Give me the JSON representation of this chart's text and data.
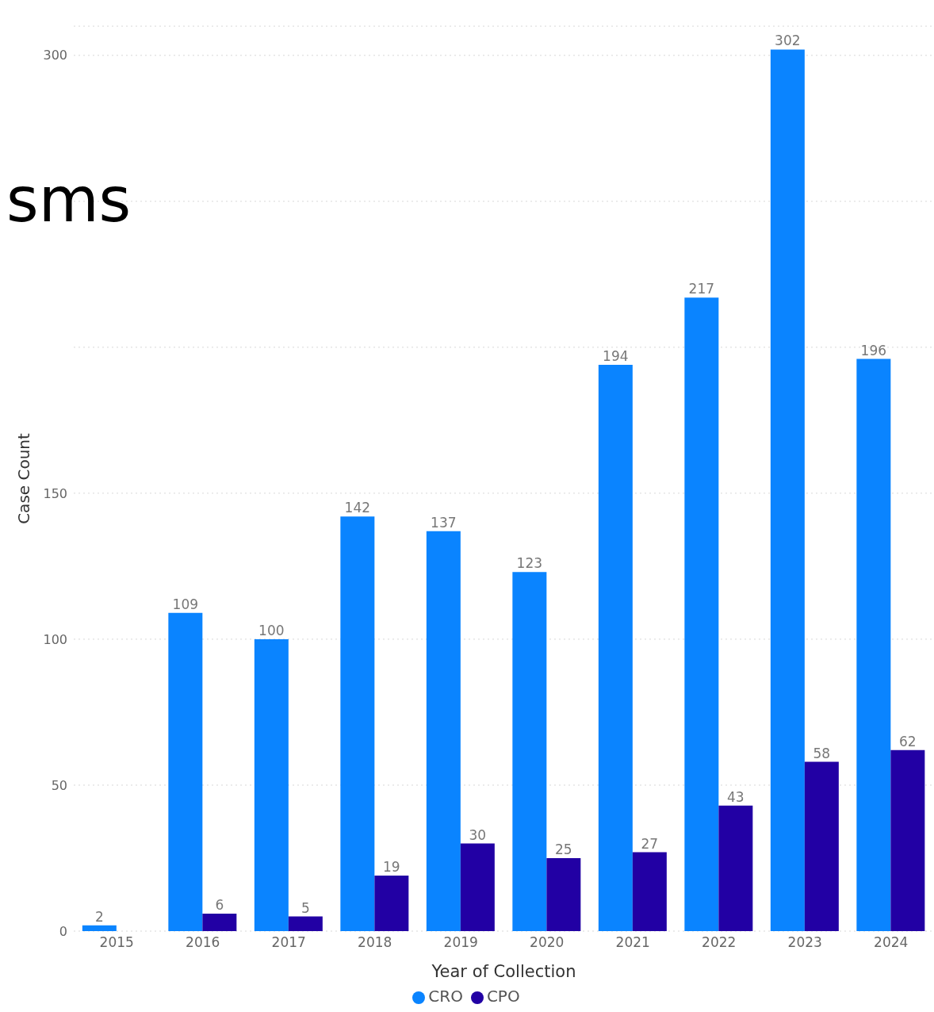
{
  "chart_data": {
    "type": "bar",
    "xlabel": "Year of Collection",
    "ylabel": "Case Count",
    "annotations": [
      "sms"
    ],
    "categories": [
      "2015",
      "2016",
      "2017",
      "2018",
      "2019",
      "2020",
      "2021",
      "2022",
      "2023",
      "2024"
    ],
    "series": [
      {
        "name": "CRO",
        "color": "#0a84ff",
        "values": [
          2,
          109,
          100,
          142,
          137,
          123,
          194,
          217,
          302,
          196
        ]
      },
      {
        "name": "CPO",
        "color": "#2200a4",
        "values": [
          null,
          6,
          5,
          19,
          30,
          25,
          27,
          43,
          58,
          62
        ]
      }
    ],
    "ylim": [
      0,
      310
    ],
    "yticks": [
      0,
      50,
      100,
      150,
      {
        "value": 200,
        "label": null
      },
      {
        "value": 250,
        "label": null
      },
      300
    ],
    "grid": "y",
    "legend": "bottom",
    "data_labels": true
  }
}
